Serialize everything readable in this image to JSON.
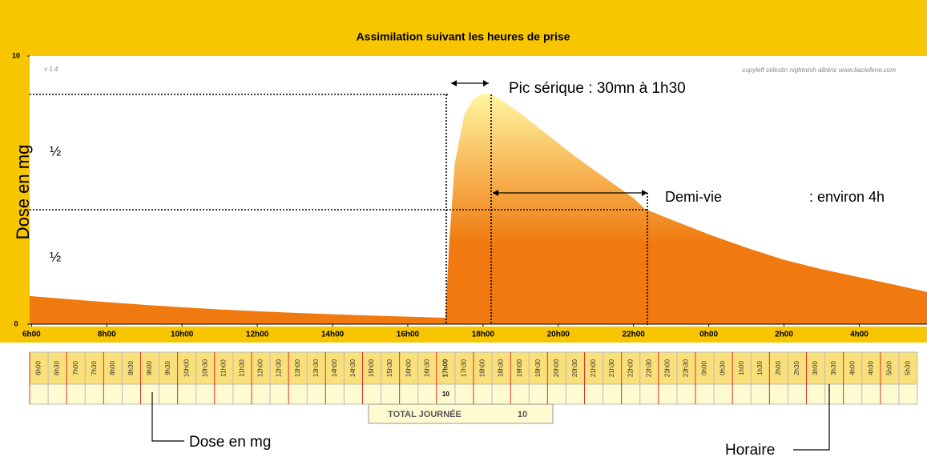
{
  "chart_data": {
    "type": "area",
    "title": "Assimilation suivant les heures de prise",
    "ylabel": "Dose en mg",
    "x": [
      5.95,
      7,
      8,
      9,
      10,
      11,
      12,
      13,
      14,
      15,
      16,
      16.95,
      17.0,
      17.1,
      17.25,
      17.5,
      17.75,
      18,
      18.25,
      18.5,
      19,
      19.5,
      20,
      20.5,
      21,
      21.5,
      22,
      22.3,
      23,
      24,
      25,
      26,
      27,
      28,
      29,
      29.8
    ],
    "values": [
      1.05,
      0.93,
      0.82,
      0.72,
      0.63,
      0.55,
      0.48,
      0.42,
      0.37,
      0.32,
      0.28,
      0.24,
      0.24,
      3.0,
      6.0,
      7.8,
      8.4,
      8.6,
      8.55,
      8.35,
      7.85,
      7.3,
      6.75,
      6.2,
      5.7,
      5.2,
      4.7,
      4.3,
      3.9,
      3.35,
      2.85,
      2.4,
      2.05,
      1.75,
      1.45,
      1.2
    ],
    "color": "#f07a10",
    "gradient_top": "#fff6a0",
    "xlim": [
      5.95,
      29.8
    ],
    "xticks": [
      {
        "value": 6,
        "label": "6h00"
      },
      {
        "value": 8,
        "label": "8h00"
      },
      {
        "value": 10,
        "label": "10h00"
      },
      {
        "value": 12,
        "label": "12h00"
      },
      {
        "value": 14,
        "label": "14h00"
      },
      {
        "value": 16,
        "label": "16h00"
      },
      {
        "value": 18,
        "label": "18h00"
      },
      {
        "value": 20,
        "label": "20h00"
      },
      {
        "value": 22,
        "label": "22h00"
      },
      {
        "value": 24,
        "label": "0h00"
      },
      {
        "value": 26,
        "label": "2h00"
      },
      {
        "value": 28,
        "label": "4h00"
      }
    ],
    "ylim": [
      0,
      10
    ],
    "yticks": [
      0,
      10
    ]
  },
  "annotations": {
    "version": "v 1.4",
    "credit": "copyleft  célestin  nightwish  albéric  www.baclofene.com",
    "peak": "Pic sérique : 30mn à 1h30",
    "half_life": "Demi-vie",
    "half_life_value": ": environ 4h",
    "half_top": "½",
    "half_bottom": "½",
    "dose_callout": "Dose en mg",
    "time_callout": "Horaire"
  },
  "table": {
    "times": [
      "6h00",
      "6h30",
      "7h00",
      "7h30",
      "8h00",
      "8h30",
      "9h00",
      "9h30",
      "10h00",
      "10h30",
      "11h00",
      "11h30",
      "12h00",
      "12h30",
      "13h00",
      "13h30",
      "14h00",
      "14h30",
      "15h00",
      "15h30",
      "16h00",
      "16h30",
      "17h00",
      "17h30",
      "18h00",
      "18h30",
      "19h00",
      "19h30",
      "20h00",
      "20h30",
      "21h00",
      "21h30",
      "22h00",
      "22h30",
      "23h00",
      "23h30",
      "0h00",
      "0h30",
      "1h00",
      "1h30",
      "2h00",
      "2h30",
      "3h00",
      "3h30",
      "4h00",
      "4h30",
      "5h00",
      "5h30"
    ],
    "doses": [
      null,
      null,
      null,
      null,
      null,
      null,
      null,
      null,
      null,
      null,
      null,
      null,
      null,
      null,
      null,
      null,
      null,
      null,
      null,
      null,
      null,
      null,
      10,
      null,
      null,
      null,
      null,
      null,
      null,
      null,
      null,
      null,
      null,
      null,
      null,
      null,
      null,
      null,
      null,
      null,
      null,
      null,
      null,
      null,
      null,
      null,
      null,
      null
    ],
    "total_label": "TOTAL JOURNÉE",
    "total": 10
  }
}
